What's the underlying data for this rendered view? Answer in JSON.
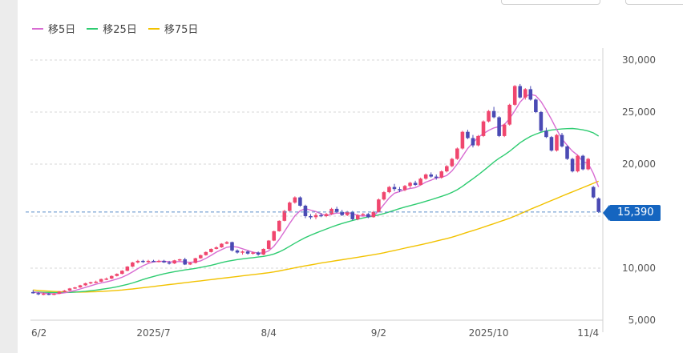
{
  "legend": [
    {
      "label": "移5日",
      "color": "#d86cd2"
    },
    {
      "label": "移25日",
      "color": "#2ecc71"
    },
    {
      "label": "移75日",
      "color": "#f2c200"
    }
  ],
  "current_price_label": "15,390",
  "chart_data": {
    "type": "candlestick",
    "x_ticks": [
      "6/2",
      "2025/7",
      "8/4",
      "9/2",
      "2025/10",
      "11/4"
    ],
    "y_ticks": [
      "30,000",
      "25,000",
      "20,000",
      "15,000",
      "10,000",
      "5,000"
    ],
    "y_tick_values": [
      30000,
      25000,
      20000,
      15000,
      10000,
      5000
    ],
    "ylim": [
      5000,
      30000
    ],
    "grid": true,
    "legend_position": "top-left",
    "current_price": 15390,
    "colors": {
      "up": "#f0466e",
      "down": "#4a4ab4",
      "current_line": "#5b8fc9"
    },
    "candles": [
      [
        7700,
        7900,
        7550,
        7600
      ],
      [
        7600,
        7700,
        7400,
        7500
      ],
      [
        7500,
        7650,
        7400,
        7550
      ],
      [
        7550,
        7600,
        7400,
        7450
      ],
      [
        7450,
        7600,
        7400,
        7550
      ],
      [
        7550,
        7800,
        7500,
        7750
      ],
      [
        7750,
        7900,
        7700,
        7850
      ],
      [
        7850,
        8100,
        7800,
        8050
      ],
      [
        8050,
        8200,
        8000,
        8150
      ],
      [
        8150,
        8400,
        8100,
        8350
      ],
      [
        8350,
        8600,
        8300,
        8550
      ],
      [
        8550,
        8700,
        8450,
        8650
      ],
      [
        8650,
        8800,
        8550,
        8700
      ],
      [
        8700,
        9000,
        8650,
        8950
      ],
      [
        8950,
        9100,
        8850,
        9000
      ],
      [
        9000,
        9300,
        8950,
        9250
      ],
      [
        9250,
        9500,
        9200,
        9450
      ],
      [
        9450,
        9800,
        9400,
        9750
      ],
      [
        9750,
        10200,
        9700,
        10150
      ],
      [
        10150,
        10600,
        10100,
        10550
      ],
      [
        10550,
        10800,
        10450,
        10700
      ],
      [
        10700,
        10800,
        10500,
        10600
      ],
      [
        10600,
        10800,
        10500,
        10700
      ],
      [
        10700,
        10800,
        10600,
        10650
      ],
      [
        10650,
        10800,
        10550,
        10700
      ],
      [
        10700,
        10800,
        10500,
        10550
      ],
      [
        10550,
        10700,
        10350,
        10450
      ],
      [
        10450,
        10800,
        10400,
        10750
      ],
      [
        10750,
        10900,
        10700,
        10850
      ],
      [
        10850,
        11000,
        10300,
        10350
      ],
      [
        10350,
        10600,
        10300,
        10500
      ],
      [
        10500,
        11000,
        10450,
        10950
      ],
      [
        10950,
        11300,
        10900,
        11250
      ],
      [
        11250,
        11600,
        11200,
        11550
      ],
      [
        11550,
        11900,
        11500,
        11850
      ],
      [
        11850,
        12100,
        11800,
        12000
      ],
      [
        12000,
        12400,
        11950,
        12350
      ],
      [
        12350,
        12600,
        12300,
        12500
      ],
      [
        12500,
        12550,
        11600,
        11700
      ],
      [
        11700,
        11800,
        11400,
        11500
      ],
      [
        11500,
        11700,
        11300,
        11600
      ],
      [
        11600,
        11700,
        11300,
        11400
      ],
      [
        11400,
        11600,
        11300,
        11500
      ],
      [
        11500,
        11600,
        11200,
        11300
      ],
      [
        11300,
        11900,
        11250,
        11850
      ],
      [
        11850,
        12700,
        11800,
        12650
      ],
      [
        12650,
        13600,
        12600,
        13550
      ],
      [
        13550,
        14600,
        13500,
        14550
      ],
      [
        14550,
        15600,
        14500,
        15500
      ],
      [
        15500,
        16400,
        15450,
        16300
      ],
      [
        16300,
        16900,
        16200,
        16800
      ],
      [
        16800,
        16900,
        15900,
        16000
      ],
      [
        16000,
        16100,
        14800,
        15000
      ],
      [
        15000,
        15200,
        14700,
        14900
      ],
      [
        14900,
        15300,
        14700,
        15100
      ],
      [
        15100,
        15300,
        14900,
        15000
      ],
      [
        15000,
        15300,
        14900,
        15200
      ],
      [
        15200,
        15800,
        15100,
        15700
      ],
      [
        15700,
        15900,
        15300,
        15400
      ],
      [
        15400,
        15600,
        15000,
        15100
      ],
      [
        15100,
        15500,
        15000,
        15400
      ],
      [
        15400,
        15500,
        14600,
        14700
      ],
      [
        14700,
        15200,
        14600,
        15100
      ],
      [
        15100,
        15300,
        15000,
        15200
      ],
      [
        15200,
        15300,
        14800,
        14900
      ],
      [
        14900,
        15500,
        14850,
        15400
      ],
      [
        15400,
        16700,
        15350,
        16600
      ],
      [
        16600,
        17400,
        16500,
        17300
      ],
      [
        17300,
        17900,
        17200,
        17800
      ],
      [
        17800,
        18100,
        17400,
        17600
      ],
      [
        17600,
        17800,
        17300,
        17500
      ],
      [
        17500,
        18000,
        17400,
        17900
      ],
      [
        17900,
        18300,
        17700,
        18200
      ],
      [
        18200,
        18400,
        17900,
        18000
      ],
      [
        18000,
        18700,
        17950,
        18600
      ],
      [
        18600,
        19100,
        18500,
        19000
      ],
      [
        19000,
        19200,
        18700,
        18800
      ],
      [
        18800,
        19000,
        18500,
        18700
      ],
      [
        18700,
        19400,
        18600,
        19300
      ],
      [
        19300,
        19900,
        19200,
        19800
      ],
      [
        19800,
        20600,
        19700,
        20500
      ],
      [
        20500,
        21600,
        20400,
        21500
      ],
      [
        21500,
        23200,
        21400,
        23100
      ],
      [
        23100,
        23300,
        22400,
        22500
      ],
      [
        22500,
        22800,
        21600,
        21800
      ],
      [
        21800,
        22800,
        21700,
        22700
      ],
      [
        22700,
        24200,
        22600,
        24100
      ],
      [
        24100,
        25200,
        24000,
        25100
      ],
      [
        25100,
        25500,
        24400,
        24500
      ],
      [
        24500,
        24600,
        22600,
        22700
      ],
      [
        22700,
        23900,
        22600,
        23800
      ],
      [
        23800,
        25800,
        23700,
        25700
      ],
      [
        25700,
        27600,
        25600,
        27500
      ],
      [
        27500,
        27700,
        26300,
        26400
      ],
      [
        26400,
        27300,
        26200,
        27200
      ],
      [
        27200,
        27500,
        26100,
        26200
      ],
      [
        26200,
        26300,
        24900,
        25000
      ],
      [
        25000,
        25100,
        23100,
        23200
      ],
      [
        23200,
        23500,
        22500,
        22600
      ],
      [
        22600,
        22700,
        21200,
        21300
      ],
      [
        21300,
        22900,
        21200,
        22800
      ],
      [
        22800,
        23000,
        21600,
        21700
      ],
      [
        21700,
        21800,
        20400,
        20500
      ],
      [
        20500,
        20600,
        19200,
        19300
      ],
      [
        19300,
        20900,
        19200,
        20800
      ],
      [
        20800,
        20900,
        19400,
        19500
      ],
      [
        19500,
        20600,
        19400,
        20500
      ],
      [
        17800,
        17900,
        16700,
        16800
      ],
      [
        16700,
        16800,
        15300,
        15390
      ]
    ],
    "series": [
      {
        "name": "移5日",
        "color": "#d86cd2",
        "values": [
          7700,
          7650,
          7600,
          7560,
          7530,
          7560,
          7630,
          7740,
          7850,
          8000,
          8150,
          8300,
          8450,
          8580,
          8680,
          8800,
          8950,
          9120,
          9350,
          9650,
          9950,
          10230,
          10450,
          10600,
          10650,
          10660,
          10620,
          10600,
          10640,
          10590,
          10560,
          10600,
          10700,
          10940,
          11230,
          11540,
          11780,
          12010,
          12080,
          12020,
          11860,
          11700,
          11520,
          11460,
          11450,
          11660,
          12110,
          12760,
          13520,
          14290,
          15030,
          15510,
          15720,
          15580,
          15440,
          15220,
          15040,
          15180,
          15300,
          15280,
          15340,
          15240,
          15060,
          15000,
          15060,
          15000,
          15500,
          16120,
          16740,
          17200,
          17360,
          17540,
          17660,
          17740,
          17980,
          18270,
          18450,
          18670,
          18730,
          18900,
          19350,
          20000,
          20750,
          21500,
          22060,
          22580,
          22920,
          23240,
          23480,
          23600,
          23800,
          24380,
          25120,
          25960,
          26500,
          26700,
          26580,
          26010,
          25190,
          24300,
          23300,
          22420,
          21800,
          21250,
          20850,
          20240,
          20060,
          19100,
          17800
        ]
      },
      {
        "name": "移25日",
        "color": "#2ecc71",
        "values": [
          7700,
          7690,
          7680,
          7670,
          7660,
          7650,
          7660,
          7670,
          7700,
          7740,
          7780,
          7830,
          7890,
          7960,
          8030,
          8110,
          8210,
          8320,
          8440,
          8580,
          8740,
          8910,
          9060,
          9200,
          9330,
          9450,
          9560,
          9660,
          9750,
          9830,
          9900,
          9980,
          10070,
          10170,
          10280,
          10400,
          10530,
          10650,
          10740,
          10820,
          10890,
          10950,
          11010,
          11070,
          11130,
          11220,
          11360,
          11560,
          11810,
          12100,
          12400,
          12680,
          12940,
          13160,
          13370,
          13570,
          13760,
          13950,
          14130,
          14290,
          14440,
          14580,
          14710,
          14820,
          14920,
          15010,
          15120,
          15250,
          15400,
          15560,
          15720,
          15870,
          16010,
          16140,
          16280,
          16430,
          16580,
          16740,
          16900,
          17070,
          17280,
          17540,
          17860,
          18230,
          18590,
          18960,
          19360,
          19780,
          20200,
          20560,
          20880,
          21230,
          21640,
          22050,
          22380,
          22660,
          22880,
          23060,
          23190,
          23280,
          23330,
          23380,
          23410,
          23420,
          23370,
          23290,
          23180,
          23000,
          22690
        ]
      },
      {
        "name": "移75日",
        "color": "#f2c200",
        "values": [
          7900,
          7860,
          7820,
          7790,
          7760,
          7740,
          7720,
          7710,
          7700,
          7700,
          7710,
          7720,
          7740,
          7760,
          7790,
          7820,
          7860,
          7900,
          7950,
          8000,
          8060,
          8120,
          8180,
          8240,
          8300,
          8360,
          8420,
          8480,
          8540,
          8600,
          8660,
          8720,
          8780,
          8840,
          8900,
          8960,
          9020,
          9080,
          9140,
          9200,
          9260,
          9320,
          9380,
          9440,
          9500,
          9560,
          9640,
          9730,
          9830,
          9930,
          10030,
          10130,
          10220,
          10310,
          10400,
          10490,
          10570,
          10650,
          10730,
          10810,
          10890,
          10970,
          11050,
          11130,
          11210,
          11290,
          11380,
          11480,
          11590,
          11700,
          11810,
          11920,
          12030,
          12140,
          12250,
          12360,
          12480,
          12600,
          12720,
          12840,
          12980,
          13130,
          13290,
          13450,
          13610,
          13770,
          13940,
          14110,
          14280,
          14450,
          14620,
          14800,
          15000,
          15220,
          15440,
          15660,
          15870,
          16080,
          16290,
          16500,
          16710,
          16920,
          17130,
          17330,
          17540,
          17740,
          17950,
          18150,
          18350
        ]
      }
    ]
  }
}
